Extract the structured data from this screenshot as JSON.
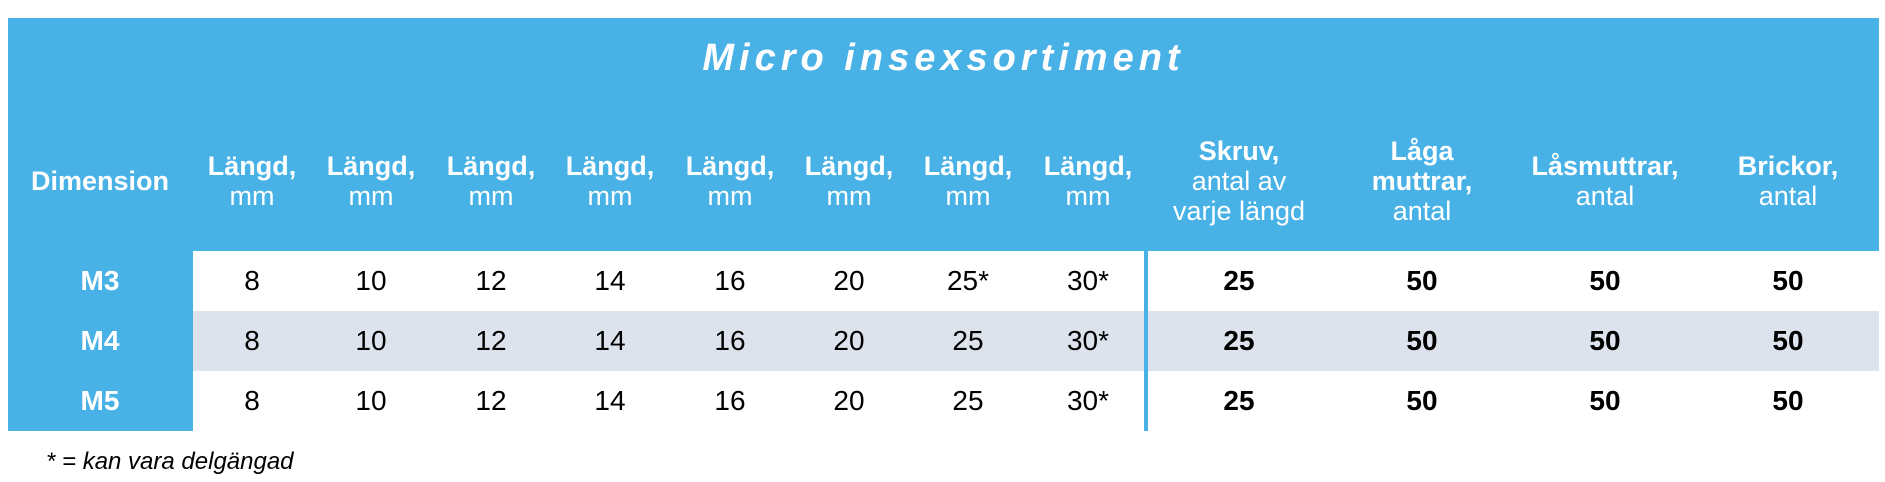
{
  "title": "Micro insexsortiment",
  "table": {
    "header": [
      {
        "bold": [
          "Dimension"
        ],
        "normal": []
      },
      {
        "bold": [
          "Längd,"
        ],
        "normal": [
          "mm"
        ]
      },
      {
        "bold": [
          "Längd,"
        ],
        "normal": [
          "mm"
        ]
      },
      {
        "bold": [
          "Längd,"
        ],
        "normal": [
          "mm"
        ]
      },
      {
        "bold": [
          "Längd,"
        ],
        "normal": [
          "mm"
        ]
      },
      {
        "bold": [
          "Längd,"
        ],
        "normal": [
          "mm"
        ]
      },
      {
        "bold": [
          "Längd,"
        ],
        "normal": [
          "mm"
        ]
      },
      {
        "bold": [
          "Längd,"
        ],
        "normal": [
          "mm"
        ]
      },
      {
        "bold": [
          "Längd,"
        ],
        "normal": [
          "mm"
        ]
      },
      {
        "bold": [
          "Skruv,"
        ],
        "normal": [
          "antal av",
          "varje längd"
        ]
      },
      {
        "bold": [
          "Låga",
          "muttrar,"
        ],
        "normal": [
          "antal"
        ]
      },
      {
        "bold": [
          "Låsmuttrar,"
        ],
        "normal": [
          "antal"
        ]
      },
      {
        "bold": [
          "Brickor,"
        ],
        "normal": [
          "antal"
        ]
      }
    ],
    "rows": [
      [
        "M3",
        8,
        10,
        12,
        14,
        16,
        20,
        "25*",
        "30*",
        25,
        50,
        50,
        50
      ],
      [
        "M4",
        8,
        10,
        12,
        14,
        16,
        20,
        25,
        "30*",
        25,
        50,
        50,
        50
      ],
      [
        "M5",
        8,
        10,
        12,
        14,
        16,
        20,
        25,
        "30*",
        25,
        50,
        50,
        50
      ]
    ]
  },
  "footnote": "* = kan vara delgängad"
}
